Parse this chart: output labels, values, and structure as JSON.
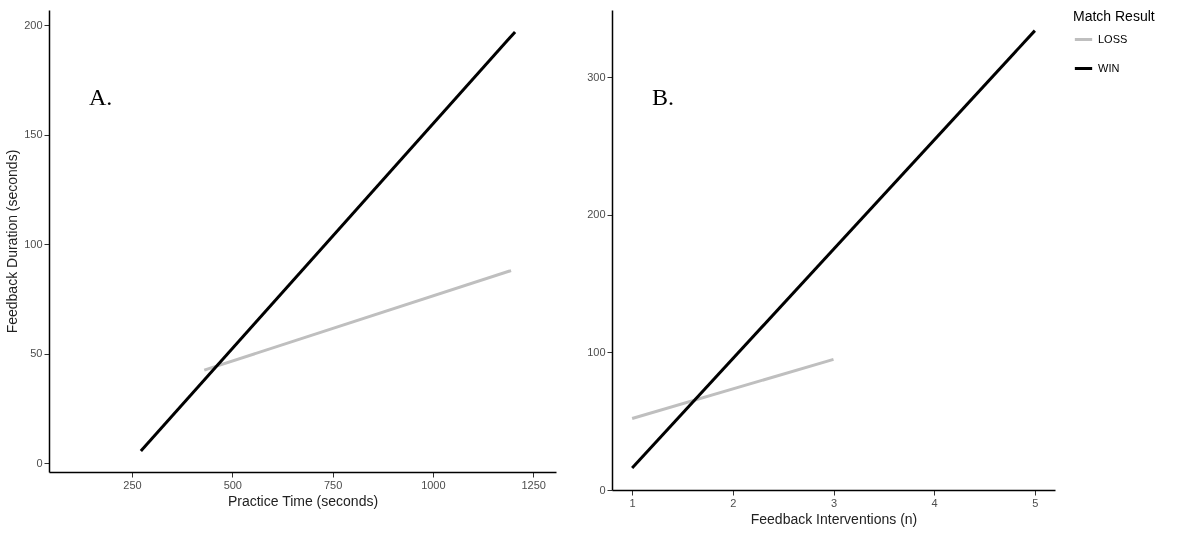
{
  "chart_data": [
    {
      "type": "line",
      "title": "A.",
      "xlabel": "Practice Time (seconds)",
      "ylabel": "Feedback Duration (seconds)",
      "xlim": [
        43,
        1307
      ],
      "xticks": [
        250,
        500,
        750,
        1000,
        1250
      ],
      "ylim": [
        -4,
        207
      ],
      "yticks": [
        0,
        50,
        100,
        150,
        200
      ],
      "grid": false,
      "series": [
        {
          "color": "#bfbfbf",
          "x": [
            430,
            1195
          ],
          "values": [
            42.5,
            88
          ]
        },
        {
          "color": "#000000",
          "x": [
            272,
            1205
          ],
          "values": [
            5.6,
            197
          ]
        }
      ]
    },
    {
      "type": "line",
      "title": "B.",
      "xlabel": "Feedback Interventions (n)",
      "legend_title": "Match Result",
      "xlim": [
        0.8,
        5.2
      ],
      "xticks": [
        1,
        2,
        3,
        4,
        5
      ],
      "ylim": [
        0,
        349
      ],
      "yticks": [
        0,
        100,
        200,
        300
      ],
      "grid": false,
      "legend": "right",
      "series": [
        {
          "name": "LOSS",
          "color": "#bfbfbf",
          "x": [
            1,
            3
          ],
          "values": [
            52,
            95
          ]
        },
        {
          "name": "WIN",
          "color": "#000000",
          "x": [
            1,
            5
          ],
          "values": [
            16,
            334
          ]
        }
      ]
    }
  ]
}
